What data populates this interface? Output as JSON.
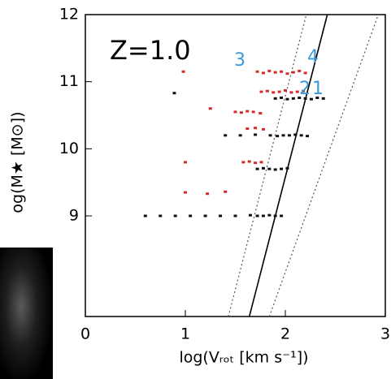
{
  "chart_data": {
    "type": "scatter",
    "xlabel": "log(Vᵣₒₜ [km s⁻¹])",
    "ylabel": "og(M★ [M⊙])",
    "xlim": [
      0,
      3
    ],
    "ylim": [
      7.5,
      12
    ],
    "xticks": [
      0,
      1,
      2,
      3
    ],
    "yticks": [
      9,
      10,
      11,
      12
    ],
    "annotations": [
      "Z=1.0",
      "3",
      "4",
      "2",
      "1"
    ],
    "lines": [
      {
        "color": "#000000",
        "style": "solid",
        "x": [
          1.64,
          2.42
        ],
        "y": [
          7.5,
          12
        ]
      },
      {
        "color": "#555555",
        "style": "dotted",
        "x": [
          1.43,
          2.21
        ],
        "y": [
          7.5,
          12
        ]
      },
      {
        "color": "#555555",
        "style": "dotted",
        "x": [
          1.84,
          2.93
        ],
        "y": [
          7.5,
          12
        ]
      }
    ],
    "series": [
      {
        "color": "#d42a2a",
        "x": [
          1.72,
          1.78,
          1.84,
          1.9,
          1.96,
          2.02,
          2.08,
          2.14,
          2.2,
          1.76,
          1.82,
          1.88,
          1.94,
          2.0,
          2.06,
          2.12,
          2.18,
          1.5,
          1.56,
          1.62,
          1.68,
          1.75,
          1.62,
          1.7,
          1.78,
          1.0,
          1.58,
          1.64,
          1.7,
          1.76,
          1.0,
          1.22,
          1.4,
          0.98,
          1.25
        ],
        "y": [
          11.15,
          11.13,
          11.16,
          11.14,
          11.15,
          11.12,
          11.14,
          11.16,
          11.13,
          10.85,
          10.86,
          10.84,
          10.85,
          10.87,
          10.84,
          10.85,
          10.86,
          10.55,
          10.54,
          10.56,
          10.55,
          10.53,
          10.3,
          10.31,
          10.29,
          9.8,
          9.8,
          9.81,
          9.79,
          9.8,
          9.35,
          9.33,
          9.36,
          11.15,
          10.6
        ]
      },
      {
        "color": "#111111",
        "x": [
          1.9,
          1.96,
          2.02,
          2.08,
          2.14,
          2.2,
          2.26,
          2.32,
          2.38,
          1.4,
          1.55,
          1.7,
          1.85,
          1.92,
          1.98,
          2.04,
          2.1,
          2.16,
          2.22,
          1.72,
          1.78,
          1.84,
          1.9,
          1.96,
          2.02,
          0.6,
          0.75,
          0.9,
          1.05,
          1.2,
          1.35,
          1.5,
          1.65,
          1.72,
          1.78,
          1.84,
          1.9,
          1.96,
          0.89
        ],
        "y": [
          10.75,
          10.76,
          10.74,
          10.75,
          10.76,
          10.75,
          10.74,
          10.76,
          10.75,
          10.2,
          10.2,
          10.21,
          10.2,
          10.19,
          10.2,
          10.2,
          10.21,
          10.2,
          10.19,
          9.7,
          9.71,
          9.7,
          9.69,
          9.7,
          9.71,
          9.0,
          9.0,
          9.0,
          9.0,
          9.0,
          9.0,
          9.0,
          9.01,
          9.0,
          9.0,
          9.01,
          9.0,
          9.0,
          10.83
        ]
      }
    ]
  }
}
